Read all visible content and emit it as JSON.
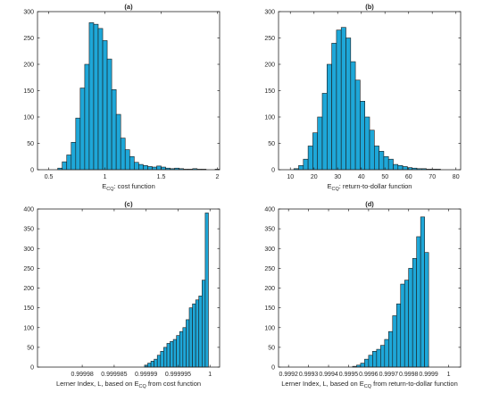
{
  "chart_data": [
    {
      "type": "bar",
      "title": "(a)",
      "xlabel_main": "E",
      "xlabel_sub": "CQ",
      "xlabel_rest": ": cost function",
      "xlim": [
        0.4,
        2.02
      ],
      "ylim": [
        0,
        300
      ],
      "xticks": [
        {
          "v": 0.5,
          "label": "0.5"
        },
        {
          "v": 1,
          "label": "1"
        },
        {
          "v": 1.5,
          "label": "1.5"
        },
        {
          "v": 2,
          "label": "2"
        }
      ],
      "yticks": [
        {
          "v": 0,
          "label": "0"
        },
        {
          "v": 50,
          "label": "50"
        },
        {
          "v": 100,
          "label": "100"
        },
        {
          "v": 150,
          "label": "150"
        },
        {
          "v": 200,
          "label": "200"
        },
        {
          "v": 250,
          "label": "250"
        },
        {
          "v": 300,
          "label": "300"
        }
      ],
      "bin_start": 0.58,
      "bin_width": 0.04,
      "values": [
        3,
        15,
        28,
        52,
        98,
        155,
        200,
        279,
        276,
        268,
        245,
        210,
        152,
        105,
        60,
        38,
        25,
        14,
        10,
        8,
        6,
        5,
        7,
        5,
        3,
        2,
        3,
        2,
        1,
        1,
        2,
        1,
        1,
        0,
        0,
        1,
        0
      ]
    },
    {
      "type": "bar",
      "title": "(b)",
      "xlabel_main": "E",
      "xlabel_sub": "CQ",
      "xlabel_rest": ": return-to-dollar function",
      "xlim": [
        5,
        82
      ],
      "ylim": [
        0,
        300
      ],
      "xticks": [
        {
          "v": 10,
          "label": "10"
        },
        {
          "v": 20,
          "label": "20"
        },
        {
          "v": 30,
          "label": "30"
        },
        {
          "v": 40,
          "label": "40"
        },
        {
          "v": 50,
          "label": "50"
        },
        {
          "v": 60,
          "label": "60"
        },
        {
          "v": 70,
          "label": "70"
        },
        {
          "v": 80,
          "label": "80"
        }
      ],
      "yticks": [
        {
          "v": 0,
          "label": "0"
        },
        {
          "v": 50,
          "label": "50"
        },
        {
          "v": 100,
          "label": "100"
        },
        {
          "v": 150,
          "label": "150"
        },
        {
          "v": 200,
          "label": "200"
        },
        {
          "v": 250,
          "label": "250"
        },
        {
          "v": 300,
          "label": "300"
        }
      ],
      "bin_start": 11.5,
      "bin_width": 2,
      "values": [
        2,
        8,
        20,
        45,
        70,
        100,
        145,
        200,
        240,
        265,
        270,
        250,
        205,
        170,
        130,
        100,
        75,
        45,
        35,
        25,
        20,
        10,
        8,
        6,
        4,
        3,
        2,
        2,
        1,
        1,
        1
      ]
    },
    {
      "type": "bar",
      "title": "(c)",
      "xlabel_main": "Lerner Index, L, based on E",
      "xlabel_sub": "CQ",
      "xlabel_rest": " from cost function",
      "xlim": [
        0.999973,
        1.0000015
      ],
      "ylim": [
        0,
        400
      ],
      "xticks": [
        {
          "v": 0.99998,
          "label": "0.99998"
        },
        {
          "v": 0.999985,
          "label": "0.999985"
        },
        {
          "v": 0.99999,
          "label": "0.99999"
        },
        {
          "v": 0.999995,
          "label": "0.999995"
        },
        {
          "v": 1,
          "label": "1"
        }
      ],
      "yticks": [
        {
          "v": 0,
          "label": "0"
        },
        {
          "v": 50,
          "label": "50"
        },
        {
          "v": 100,
          "label": "100"
        },
        {
          "v": 150,
          "label": "150"
        },
        {
          "v": 200,
          "label": "200"
        },
        {
          "v": 250,
          "label": "250"
        },
        {
          "v": 300,
          "label": "300"
        },
        {
          "v": 350,
          "label": "350"
        },
        {
          "v": 400,
          "label": "400"
        }
      ],
      "bin_start": 0.99998975,
      "bin_width": 5e-07,
      "values": [
        5,
        10,
        15,
        20,
        30,
        40,
        50,
        60,
        65,
        70,
        80,
        90,
        100,
        120,
        150,
        160,
        170,
        180,
        220,
        390
      ]
    },
    {
      "type": "bar",
      "title": "(d)",
      "xlabel_main": "Lerner Index, L, based on E",
      "xlabel_sub": "CQ",
      "xlabel_rest": " from return-to-dollar function",
      "xlim": [
        0.99915,
        1.00006
      ],
      "ylim": [
        0,
        400
      ],
      "xticks": [
        {
          "v": 0.9992,
          "label": "0.9992"
        },
        {
          "v": 0.9993,
          "label": "0.9993"
        },
        {
          "v": 0.9994,
          "label": "0.9994"
        },
        {
          "v": 0.9995,
          "label": "0.9995"
        },
        {
          "v": 0.9996,
          "label": "0.9996"
        },
        {
          "v": 0.9997,
          "label": "0.9997"
        },
        {
          "v": 0.9998,
          "label": "0.9998"
        },
        {
          "v": 0.9999,
          "label": "0.9999"
        },
        {
          "v": 1,
          "label": "1"
        }
      ],
      "yticks": [
        {
          "v": 0,
          "label": "0"
        },
        {
          "v": 50,
          "label": "50"
        },
        {
          "v": 100,
          "label": "100"
        },
        {
          "v": 150,
          "label": "150"
        },
        {
          "v": 200,
          "label": "200"
        },
        {
          "v": 250,
          "label": "250"
        },
        {
          "v": 300,
          "label": "300"
        },
        {
          "v": 350,
          "label": "350"
        },
        {
          "v": 400,
          "label": "400"
        }
      ],
      "bin_start": 0.99952,
      "bin_width": 2e-05,
      "values": [
        2,
        5,
        10,
        20,
        30,
        40,
        45,
        55,
        70,
        90,
        130,
        160,
        210,
        220,
        250,
        275,
        330,
        380,
        290
      ]
    }
  ]
}
